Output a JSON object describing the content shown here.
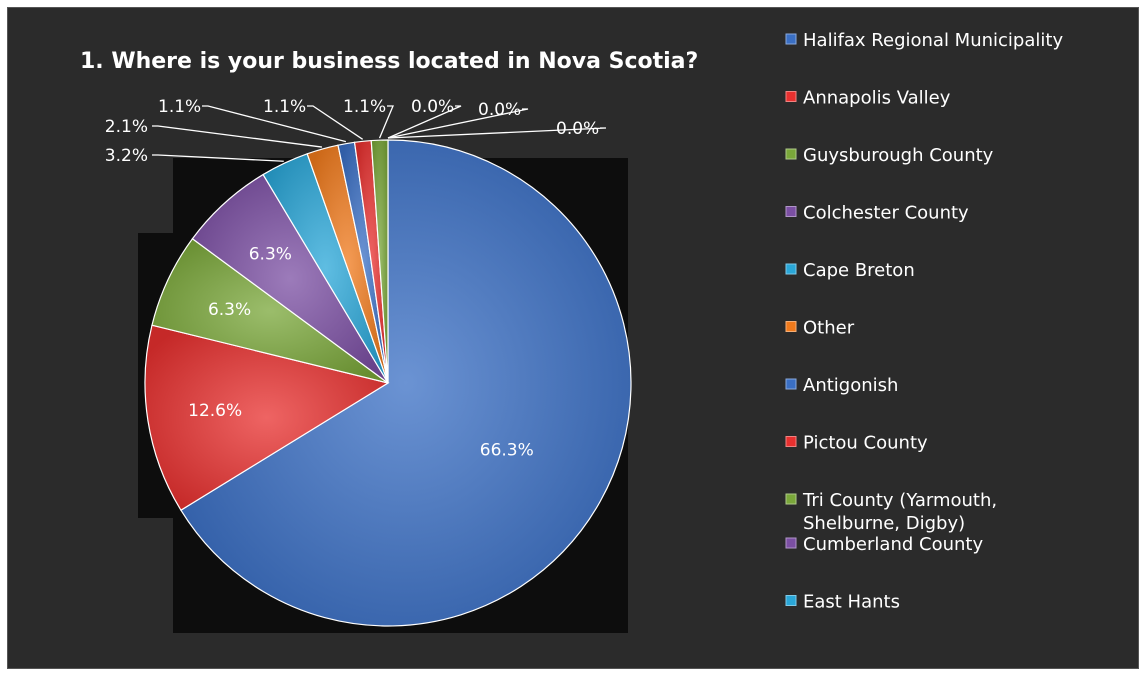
{
  "chart_data": {
    "type": "pie",
    "title": "1. Where is your business located in Nova Scotia?",
    "slices": [
      {
        "name": "Halifax Regional Municipality",
        "value": 66.3,
        "label": "66.3%",
        "color": "#3a6fc4"
      },
      {
        "name": "Annapolis Valley",
        "value": 12.6,
        "label": "12.6%",
        "color": "#e8302f"
      },
      {
        "name": "Guysburough County",
        "value": 6.3,
        "label": "6.3%",
        "color": "#7aa73a"
      },
      {
        "name": "Colchester County",
        "value": 6.3,
        "label": "6.3%",
        "color": "#7b4fa3"
      },
      {
        "name": "Cape Breton",
        "value": 3.2,
        "label": "3.2%",
        "color": "#2aa7d8"
      },
      {
        "name": "Other",
        "value": 2.1,
        "label": "2.1%",
        "color": "#f07a1c"
      },
      {
        "name": "Antigonish",
        "value": 1.1,
        "label": "1.1%",
        "color": "#3a6fc4"
      },
      {
        "name": "Pictou County",
        "value": 1.1,
        "label": "1.1%",
        "color": "#e8302f"
      },
      {
        "name": "Tri County (Yarmouth, Shelburne, Digby)",
        "value": 1.1,
        "label": "1.1%",
        "color": "#7aa73a"
      },
      {
        "name": "Cumberland County",
        "value": 0.0,
        "label": "0.0%",
        "color": "#7b4fa3"
      },
      {
        "name": "East Hants",
        "value": 0.0,
        "label": "0.0%",
        "color": "#2aa7d8"
      }
    ],
    "extra_labels": [
      "0.0%"
    ],
    "legend": [
      [
        "Halifax Regional Municipality"
      ],
      [
        "Annapolis Valley"
      ],
      [
        "Guysburough County"
      ],
      [
        "Colchester County"
      ],
      [
        "Cape Breton"
      ],
      [
        "Other"
      ],
      [
        "Antigonish"
      ],
      [
        "Pictou County"
      ],
      [
        "Tri County (Yarmouth,",
        "Shelburne, Digby)"
      ],
      [
        "Cumberland County"
      ],
      [
        "East Hants"
      ]
    ],
    "legend_position": "right"
  }
}
